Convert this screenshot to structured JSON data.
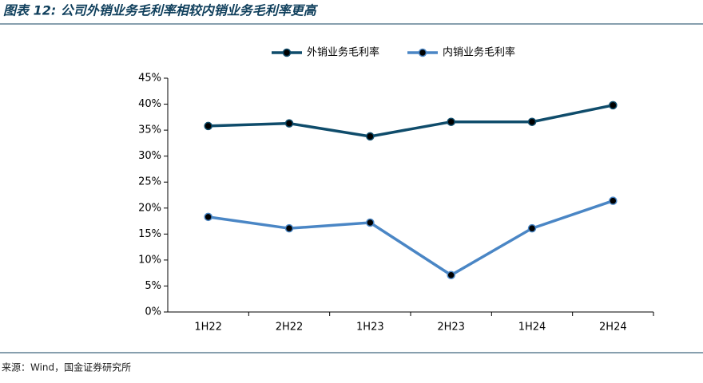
{
  "chart_data": {
    "type": "line",
    "title": "图表 12: 公司外销业务毛利率相较内销业务毛利率更高",
    "source": "来源：Wind，国金证券研究所",
    "categories": [
      "1H22",
      "2H22",
      "1H23",
      "2H23",
      "1H24",
      "2H24"
    ],
    "series": [
      {
        "name": "外销业务毛利率",
        "color": "#0f4c6b",
        "values": [
          35.8,
          36.3,
          33.8,
          36.6,
          36.6,
          39.8
        ]
      },
      {
        "name": "内销业务毛利率",
        "color": "#4a86c5",
        "values": [
          18.3,
          16.1,
          17.2,
          7.1,
          16.1,
          21.4
        ]
      }
    ],
    "ylim": [
      0,
      45
    ],
    "yticks": [
      {
        "value": 0,
        "label": "0%"
      },
      {
        "value": 5,
        "label": "5%"
      },
      {
        "value": 10,
        "label": "10%"
      },
      {
        "value": 15,
        "label": "15%"
      },
      {
        "value": 20,
        "label": "20%"
      },
      {
        "value": 25,
        "label": "25%"
      },
      {
        "value": 30,
        "label": "30%"
      },
      {
        "value": 35,
        "label": "35%"
      },
      {
        "value": 40,
        "label": "40%"
      },
      {
        "value": 45,
        "label": "45%"
      }
    ],
    "legend": "top"
  }
}
